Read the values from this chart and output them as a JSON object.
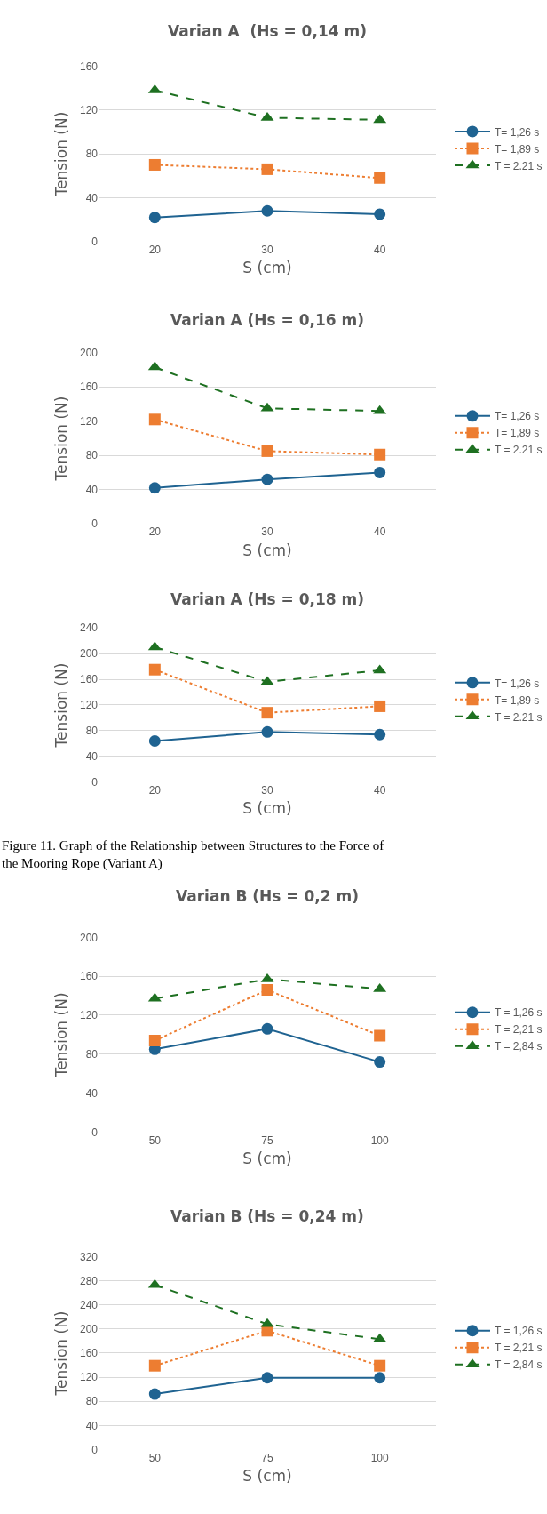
{
  "chart_data": [
    {
      "type": "line",
      "title": "Varian A  (Hs = 0,14 m)",
      "xlabel": "S (cm)",
      "ylabel": "Tension (N)",
      "categories": [
        "20",
        "30",
        "40"
      ],
      "ylim": [
        0,
        160
      ],
      "yticks": [
        0,
        40,
        80,
        120,
        160
      ],
      "grid": "y",
      "legend": "right",
      "series": [
        {
          "name": "T= 1,26 s",
          "color": "#1f6391",
          "marker": "circle",
          "line_style": "solid",
          "values": [
            22,
            28,
            25
          ]
        },
        {
          "name": "T= 1,89 s",
          "color": "#ed7d31",
          "marker": "square",
          "line_style": "dotted",
          "values": [
            70,
            66,
            58
          ]
        },
        {
          "name": "T = 2.21 s",
          "color": "#1e7021",
          "marker": "triangle",
          "line_style": "dashed",
          "values": [
            138,
            113,
            111
          ]
        }
      ]
    },
    {
      "type": "line",
      "title": "Varian A (Hs = 0,16 m)",
      "xlabel": "S (cm)",
      "ylabel": "Tension (N)",
      "categories": [
        "20",
        "30",
        "40"
      ],
      "ylim": [
        0,
        200
      ],
      "yticks": [
        0,
        40,
        80,
        120,
        160,
        200
      ],
      "grid": "y",
      "legend": "right",
      "series": [
        {
          "name": "T= 1,26 s",
          "color": "#1f6391",
          "marker": "circle",
          "line_style": "solid",
          "values": [
            42,
            52,
            60
          ]
        },
        {
          "name": "T= 1,89 s",
          "color": "#ed7d31",
          "marker": "square",
          "line_style": "dotted",
          "values": [
            122,
            85,
            81
          ]
        },
        {
          "name": "T = 2.21 s",
          "color": "#1e7021",
          "marker": "triangle",
          "line_style": "dashed",
          "values": [
            183,
            135,
            132
          ]
        }
      ]
    },
    {
      "type": "line",
      "title": "Varian A (Hs = 0,18 m)",
      "xlabel": "S (cm)",
      "ylabel": "Tension (N)",
      "categories": [
        "20",
        "30",
        "40"
      ],
      "ylim": [
        0,
        240
      ],
      "yticks": [
        0,
        40,
        80,
        120,
        160,
        200,
        240
      ],
      "grid": "y",
      "legend": "right",
      "annotations": [
        "Figure 11. Graph of the Relationship between Structures to the Force of the Mooring Rope (Variant A)"
      ],
      "series": [
        {
          "name": "T= 1,26 s",
          "color": "#1f6391",
          "marker": "circle",
          "line_style": "solid",
          "values": [
            64,
            78,
            74
          ]
        },
        {
          "name": "T= 1,89 s",
          "color": "#ed7d31",
          "marker": "square",
          "line_style": "dotted",
          "values": [
            175,
            108,
            118
          ]
        },
        {
          "name": "T = 2.21 s",
          "color": "#1e7021",
          "marker": "triangle",
          "line_style": "dashed",
          "values": [
            210,
            156,
            174
          ]
        }
      ]
    },
    {
      "type": "line",
      "title": "Varian B (Hs = 0,2 m)",
      "xlabel": "S (cm)",
      "ylabel": "Tension (N)",
      "categories": [
        "50",
        "75",
        "100"
      ],
      "ylim": [
        0,
        200
      ],
      "yticks": [
        0,
        40,
        80,
        120,
        160,
        200
      ],
      "grid": "y",
      "legend": "right",
      "series": [
        {
          "name": "T = 1,26 s",
          "color": "#1f6391",
          "marker": "circle",
          "line_style": "solid",
          "values": [
            85,
            106,
            72
          ]
        },
        {
          "name": "T = 2,21 s",
          "color": "#ed7d31",
          "marker": "square",
          "line_style": "dotted",
          "values": [
            94,
            146,
            99
          ]
        },
        {
          "name": "T = 2,84 s",
          "color": "#1e7021",
          "marker": "triangle",
          "line_style": "dashed",
          "values": [
            137,
            157,
            147
          ]
        }
      ]
    },
    {
      "type": "line",
      "title": "Varian B (Hs = 0,24 m)",
      "xlabel": "S (cm)",
      "ylabel": "Tension (N)",
      "categories": [
        "50",
        "75",
        "100"
      ],
      "ylim": [
        0,
        320
      ],
      "yticks": [
        0,
        40,
        80,
        120,
        160,
        200,
        240,
        280,
        320
      ],
      "grid": "y",
      "legend": "right",
      "series": [
        {
          "name": "T = 1,26 s",
          "color": "#1f6391",
          "marker": "circle",
          "line_style": "solid",
          "values": [
            92,
            119,
            119
          ]
        },
        {
          "name": "T = 2,21 s",
          "color": "#ed7d31",
          "marker": "square",
          "line_style": "dotted",
          "values": [
            139,
            197,
            139
          ]
        },
        {
          "name": "T = 2,84 s",
          "color": "#1e7021",
          "marker": "triangle",
          "line_style": "dashed",
          "values": [
            273,
            208,
            183
          ]
        }
      ]
    }
  ]
}
